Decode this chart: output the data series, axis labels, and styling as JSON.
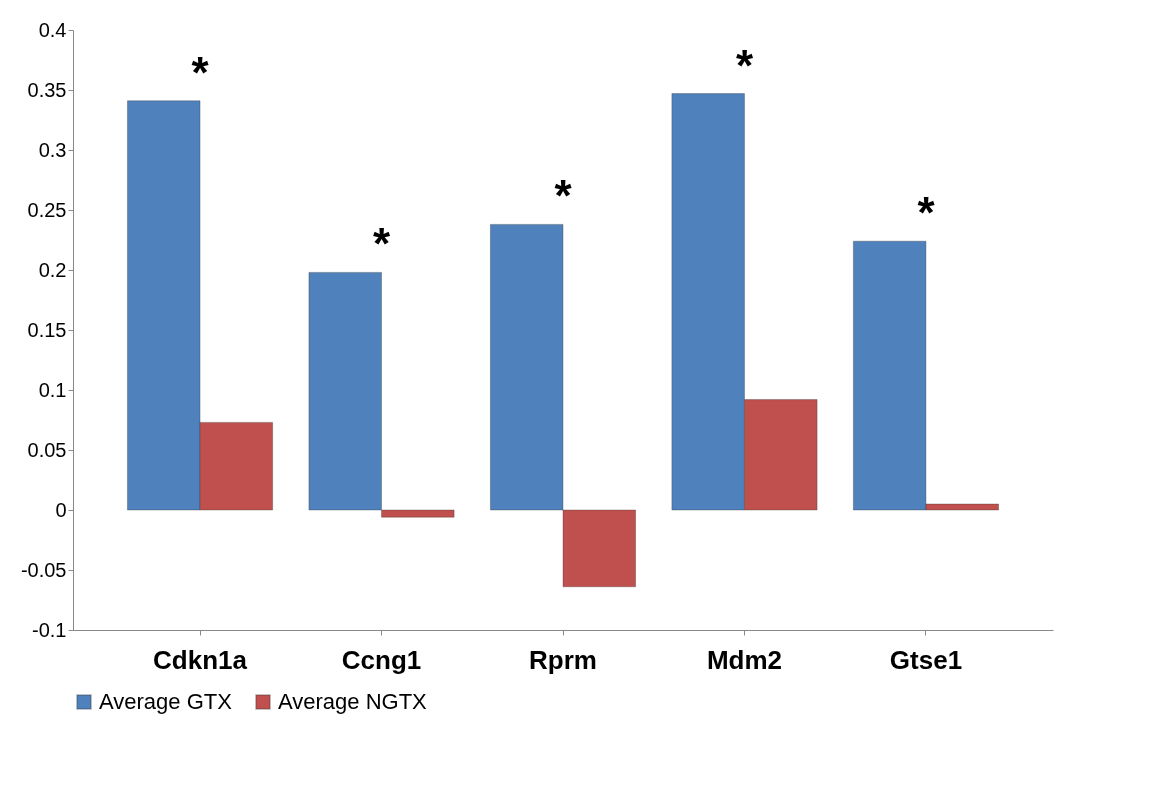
{
  "chart_data": {
    "type": "bar",
    "categories": [
      "Cdkn1a",
      "Ccng1",
      "Rprm",
      "Mdm2",
      "Gtse1"
    ],
    "series": [
      {
        "name": "Average GTX",
        "color": "#4f81bd",
        "values": [
          0.341,
          0.198,
          0.238,
          0.347,
          0.224
        ]
      },
      {
        "name": "Average NGTX",
        "color": "#c0504d",
        "values": [
          0.073,
          -0.006,
          -0.064,
          0.092,
          0.005
        ]
      }
    ],
    "ylim": [
      -0.1,
      0.4
    ],
    "yticks": [
      -0.1,
      -0.05,
      0,
      0.05,
      0.1,
      0.15,
      0.2,
      0.25,
      0.3,
      0.35,
      0.4
    ],
    "annotations": [
      "*",
      "*",
      "*",
      "*",
      "*"
    ],
    "grid": false,
    "legend": "bottom"
  }
}
